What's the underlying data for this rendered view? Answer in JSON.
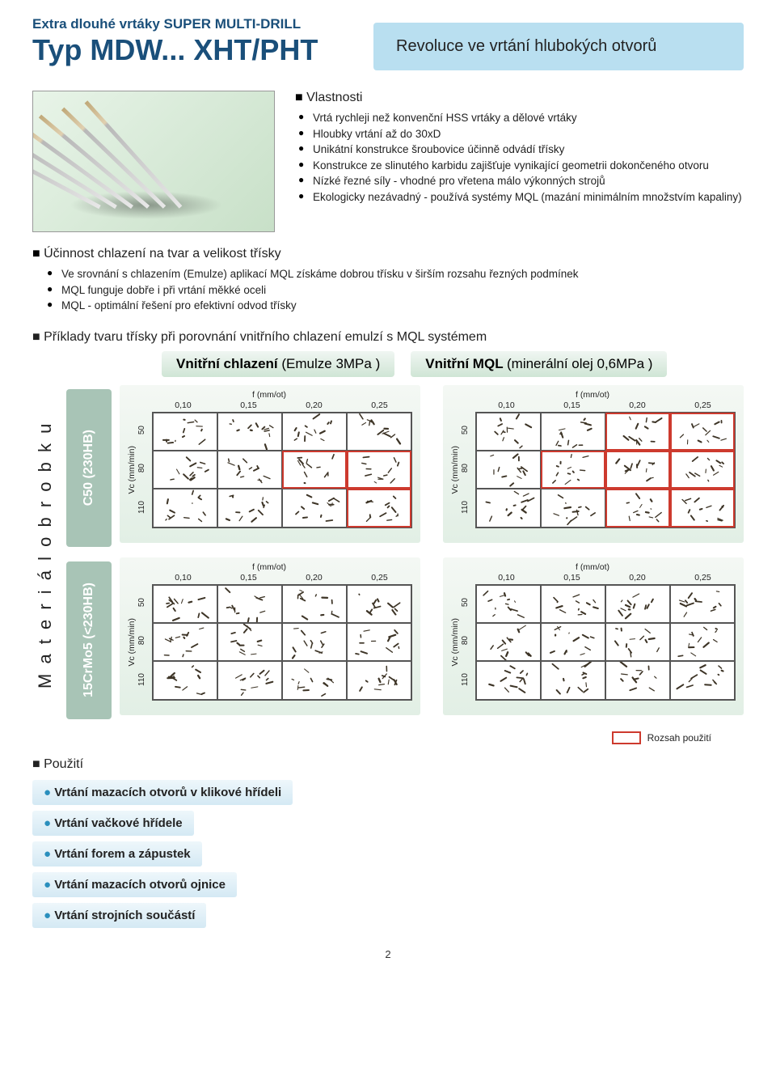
{
  "header": {
    "small_line": "Extra dlouhé vrtáky SUPER MULTI-DRILL",
    "big_line": "Typ MDW... XHT/PHT",
    "title_box": "Revoluce ve vrtání hlubokých otvorů"
  },
  "features": {
    "heading": "Vlastnosti",
    "items": [
      "Vrtá rychleji než konvenční HSS vrtáky a dělové vrtáky",
      "Hloubky vrtání až do 30xD",
      "Unikátní konstrukce šroubovice účinně odvádí třísky",
      "Konstrukce ze slinutého karbidu zajišťuje vynikající geometrii dokončeného otvoru",
      "Nízké řezné síly - vhodné pro vřetena málo výkonných strojů",
      "Ekologicky nezávadný - používá systémy MQL (mazání minimálním množstvím kapaliny)"
    ]
  },
  "cooling": {
    "heading": "Účinnost chlazení na tvar a velikost třísky",
    "items": [
      "Ve srovnání s chlazením (Emulze) aplikací MQL získáme dobrou třísku v širším rozsahu řezných podmínek",
      "MQL funguje dobře i při vrtání měkké oceli",
      "MQL - optimální řešení pro efektivní odvod třísky"
    ]
  },
  "comparison": {
    "heading": "Příklady tvaru třísky při porovnání vnitřního chlazení emulzí s  MQL systémem",
    "left_title_main": "Vnitřní chlazení",
    "left_title_sub": "(Emulze 3MPa )",
    "right_title_main": "Vnitřní MQL",
    "right_title_sub": "(minerální olej 0,6MPa )",
    "material_side_label": "M a t e r i á l   o b r o b k u",
    "materials": [
      "C50 (230HB)",
      "15CrMo5 (<230HB)"
    ],
    "x_axis_label": "f (mm/ot)",
    "x_ticks": [
      "0,10",
      "0,15",
      "0,20",
      "0,25"
    ],
    "y_axis_label": "Vc (mm/min)",
    "y_ticks": [
      "50",
      "80",
      "110"
    ],
    "legend": "Rozsah použití",
    "highlight_color": "#cd3a2e",
    "grids": {
      "left_top": [
        [
          0,
          0,
          0,
          0
        ],
        [
          0,
          0,
          1,
          1
        ],
        [
          0,
          0,
          0,
          1
        ]
      ],
      "right_top": [
        [
          0,
          0,
          1,
          1
        ],
        [
          0,
          1,
          1,
          1
        ],
        [
          0,
          0,
          1,
          1
        ]
      ],
      "left_bot": [
        [
          0,
          0,
          0,
          0
        ],
        [
          0,
          0,
          0,
          0
        ],
        [
          0,
          0,
          0,
          0
        ]
      ],
      "right_bot": [
        [
          0,
          0,
          0,
          0
        ],
        [
          0,
          0,
          0,
          0
        ],
        [
          0,
          0,
          0,
          0
        ]
      ]
    }
  },
  "applications": {
    "heading": "Použití",
    "items": [
      "Vrtání mazacích otvorů v klikové hřídeli",
      "Vrtání vačkové hřídele",
      "Vrtání forem a zápustek",
      "Vrtání mazacích otvorů ojnice",
      "Vrtání strojních součástí"
    ]
  },
  "page_number": "2",
  "colors": {
    "brand_blue": "#1a4f7a",
    "box_blue": "#b9dff0",
    "badge_green": "#a8c4b6",
    "gradient_green_top": "#f0f6f2",
    "gradient_green_bot": "#cfe5d5",
    "app_blue_bullet": "#2a8fbd"
  }
}
